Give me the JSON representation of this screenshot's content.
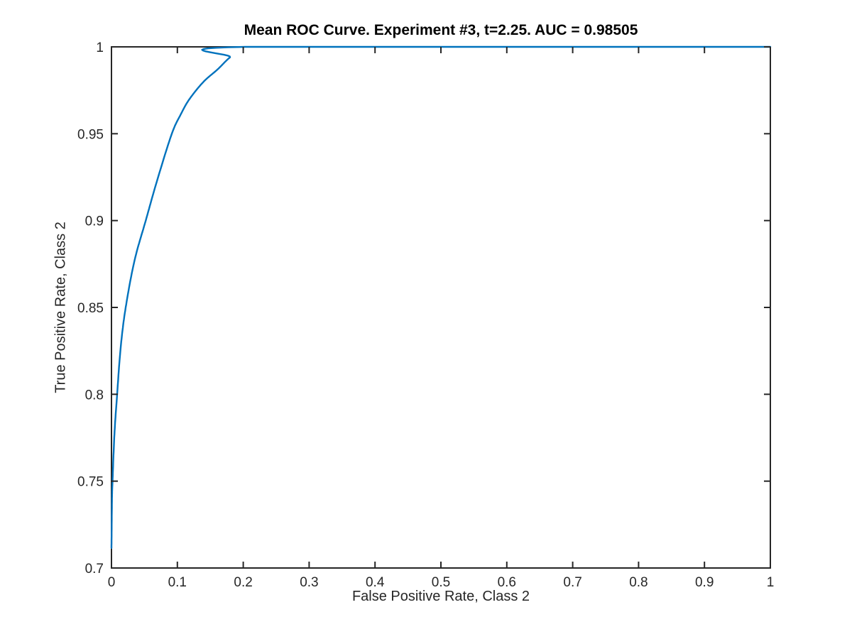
{
  "figure": {
    "background": "#ffffff"
  },
  "chart_data": {
    "type": "line",
    "title": "Mean ROC Curve. Experiment #3, t=2.25. AUC = 0.98505",
    "xlabel": "False Positive Rate, Class 2",
    "ylabel": "True Positive Rate, Class 2",
    "experiment_number": 3,
    "threshold_t": 2.25,
    "auc": 0.98505,
    "xlim": [
      0,
      1
    ],
    "ylim": [
      0.7,
      1
    ],
    "grid": false,
    "legend": "none",
    "box": true,
    "axis_color": "#262626",
    "title_color": "#000000",
    "background_color": "#ffffff",
    "x_ticks": [
      {
        "value": 0.0,
        "label": "0"
      },
      {
        "value": 0.1,
        "label": "0.1"
      },
      {
        "value": 0.2,
        "label": "0.2"
      },
      {
        "value": 0.3,
        "label": "0.3"
      },
      {
        "value": 0.4,
        "label": "0.4"
      },
      {
        "value": 0.5,
        "label": "0.5"
      },
      {
        "value": 0.6,
        "label": "0.6"
      },
      {
        "value": 0.7,
        "label": "0.7"
      },
      {
        "value": 0.8,
        "label": "0.8"
      },
      {
        "value": 0.9,
        "label": "0.9"
      },
      {
        "value": 1.0,
        "label": "1"
      }
    ],
    "y_ticks": [
      {
        "value": 0.7,
        "label": "0.7"
      },
      {
        "value": 0.75,
        "label": "0.75"
      },
      {
        "value": 0.8,
        "label": "0.8"
      },
      {
        "value": 0.85,
        "label": "0.85"
      },
      {
        "value": 0.9,
        "label": "0.9"
      },
      {
        "value": 0.95,
        "label": "0.95"
      },
      {
        "value": 1.0,
        "label": "1"
      }
    ],
    "series": [
      {
        "name": "Mean ROC curve",
        "color": "#0072BD",
        "line_width": 2.4,
        "points": [
          [
            0.0,
            0.7115
          ],
          [
            0.0008,
            0.74
          ],
          [
            0.0016,
            0.75
          ],
          [
            0.0045,
            0.777
          ],
          [
            0.0086,
            0.8
          ],
          [
            0.014,
            0.827
          ],
          [
            0.0216,
            0.85
          ],
          [
            0.035,
            0.877
          ],
          [
            0.052,
            0.9
          ],
          [
            0.07,
            0.924
          ],
          [
            0.0916,
            0.95
          ],
          [
            0.105,
            0.961
          ],
          [
            0.1185,
            0.97
          ],
          [
            0.14,
            0.98
          ],
          [
            0.161,
            0.987
          ],
          [
            0.18,
            0.994
          ],
          [
            0.203,
            1.0
          ],
          [
            1.0,
            1.0
          ]
        ]
      }
    ]
  }
}
